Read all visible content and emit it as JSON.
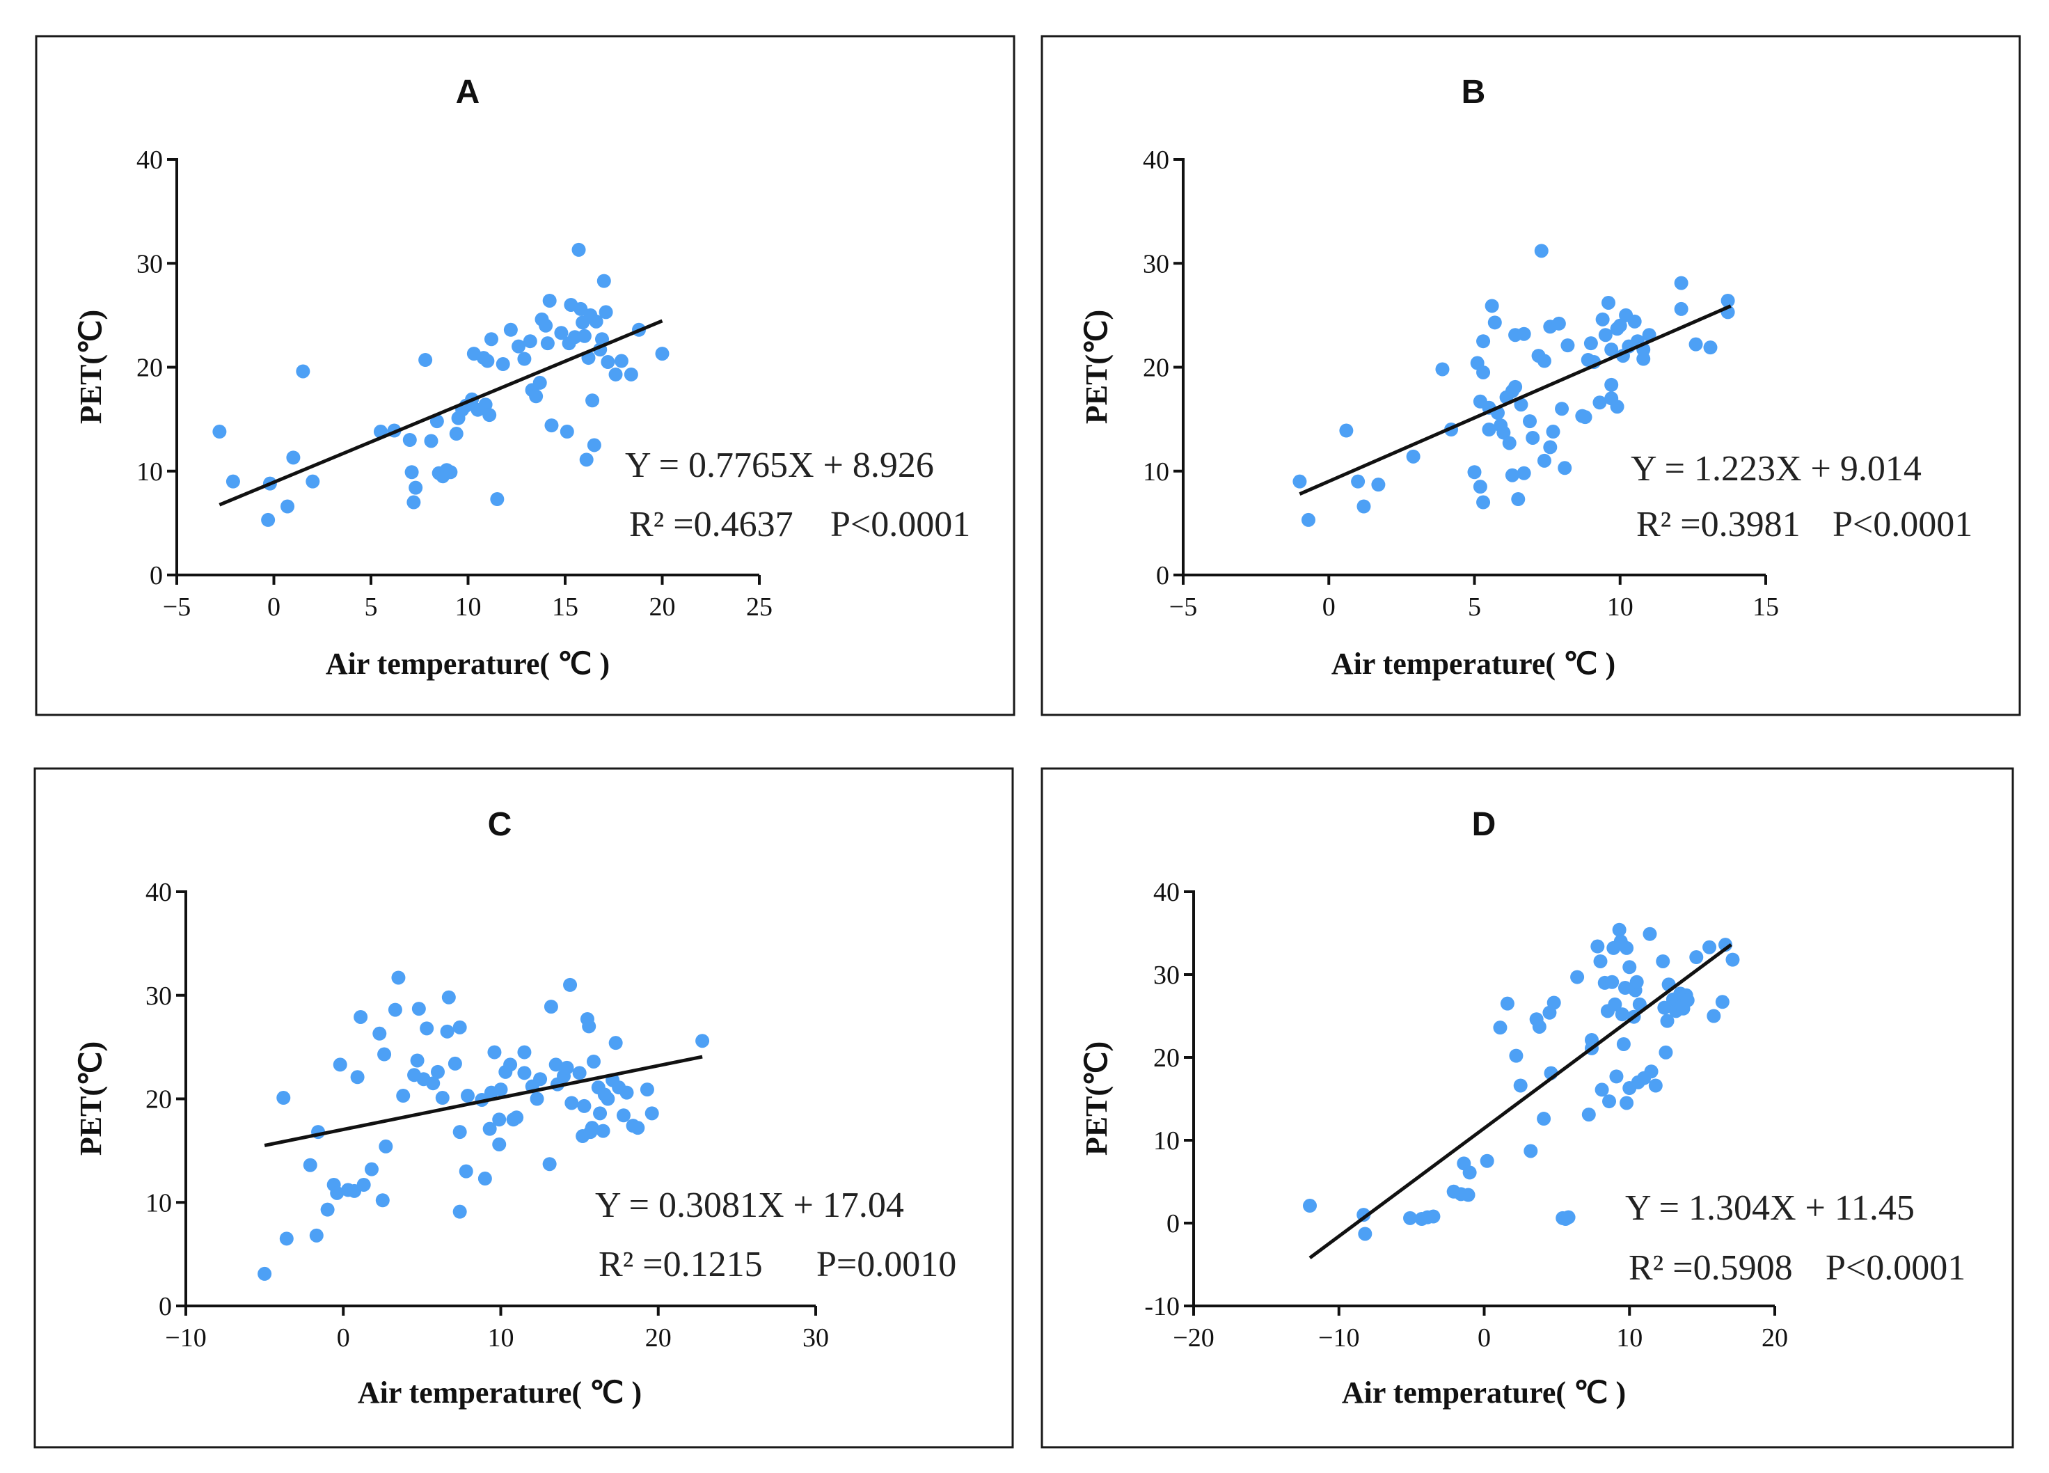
{
  "chart_data": [
    {
      "type": "scatter",
      "title": "A",
      "xlabel": "Air temperature(  ℃  )",
      "ylabel": "PET(℃)",
      "xlim": [
        -5,
        25
      ],
      "ylim": [
        0,
        40
      ],
      "xticks": [
        "−5",
        "0",
        "5",
        "10",
        "15",
        "20",
        "25"
      ],
      "yticks": [
        "0",
        "10",
        "20",
        "30",
        "40"
      ],
      "regression": {
        "slope": 0.7765,
        "intercept": 8.926,
        "x_range": [
          -2.8,
          20
        ]
      },
      "equation": "Y = 0.7765X + 8.926",
      "r2_label": "R² =0.4637",
      "p_label": "P<0.0001",
      "points": [
        [
          -2.8,
          13.8
        ],
        [
          -2.1,
          9.0
        ],
        [
          -0.3,
          5.3
        ],
        [
          -0.2,
          8.8
        ],
        [
          0.7,
          6.6
        ],
        [
          1.0,
          11.3
        ],
        [
          1.5,
          19.6
        ],
        [
          2.0,
          9.0
        ],
        [
          5.5,
          13.8
        ],
        [
          6.2,
          13.9
        ],
        [
          7.0,
          13.0
        ],
        [
          7.1,
          9.9
        ],
        [
          7.2,
          7.0
        ],
        [
          7.3,
          8.4
        ],
        [
          7.8,
          20.7
        ],
        [
          8.1,
          12.9
        ],
        [
          8.4,
          14.8
        ],
        [
          8.5,
          9.8
        ],
        [
          8.7,
          9.5
        ],
        [
          8.9,
          10.1
        ],
        [
          9.1,
          9.9
        ],
        [
          9.4,
          13.6
        ],
        [
          9.5,
          15.1
        ],
        [
          9.7,
          15.9
        ],
        [
          9.9,
          16.3
        ],
        [
          10.2,
          16.9
        ],
        [
          10.3,
          21.3
        ],
        [
          10.5,
          15.9
        ],
        [
          10.8,
          20.9
        ],
        [
          10.9,
          16.4
        ],
        [
          11.0,
          20.6
        ],
        [
          11.1,
          15.4
        ],
        [
          11.2,
          22.7
        ],
        [
          11.5,
          7.3
        ],
        [
          11.8,
          20.3
        ],
        [
          12.2,
          23.6
        ],
        [
          12.6,
          22.0
        ],
        [
          12.9,
          20.8
        ],
        [
          13.2,
          22.5
        ],
        [
          13.3,
          17.8
        ],
        [
          13.5,
          17.2
        ],
        [
          13.7,
          18.5
        ],
        [
          13.8,
          24.6
        ],
        [
          14.0,
          24.0
        ],
        [
          14.1,
          22.3
        ],
        [
          14.2,
          26.4
        ],
        [
          14.3,
          14.4
        ],
        [
          14.8,
          23.3
        ],
        [
          15.1,
          13.8
        ],
        [
          15.2,
          22.3
        ],
        [
          15.3,
          26.0
        ],
        [
          15.5,
          22.9
        ],
        [
          15.7,
          31.3
        ],
        [
          15.8,
          25.6
        ],
        [
          15.9,
          24.3
        ],
        [
          16.0,
          23.0
        ],
        [
          16.1,
          11.1
        ],
        [
          16.2,
          20.9
        ],
        [
          16.3,
          25.0
        ],
        [
          16.4,
          16.8
        ],
        [
          16.5,
          12.5
        ],
        [
          16.6,
          24.4
        ],
        [
          16.8,
          21.7
        ],
        [
          16.9,
          22.7
        ],
        [
          17.0,
          28.3
        ],
        [
          17.1,
          25.3
        ],
        [
          17.2,
          20.5
        ],
        [
          17.6,
          19.3
        ],
        [
          17.9,
          20.6
        ],
        [
          18.4,
          19.3
        ],
        [
          18.8,
          23.6
        ],
        [
          20.0,
          21.3
        ]
      ]
    },
    {
      "type": "scatter",
      "title": "B",
      "xlabel": "Air temperature(  ℃  )",
      "ylabel": "PET(℃)",
      "xlim": [
        -5,
        15
      ],
      "ylim": [
        0,
        40
      ],
      "xticks": [
        "−5",
        "0",
        "5",
        "10",
        "15"
      ],
      "yticks": [
        "0",
        "10",
        "20",
        "30",
        "40"
      ],
      "regression": {
        "slope": 1.223,
        "intercept": 9.014,
        "x_range": [
          -1,
          13.8
        ]
      },
      "equation": "Y = 1.223X + 9.014",
      "r2_label": "R² =0.3981",
      "p_label": "P<0.0001",
      "points": [
        [
          -1.0,
          9.0
        ],
        [
          -0.7,
          5.3
        ],
        [
          0.6,
          13.9
        ],
        [
          1.0,
          9.0
        ],
        [
          1.2,
          6.6
        ],
        [
          1.7,
          8.7
        ],
        [
          2.9,
          11.4
        ],
        [
          3.9,
          19.8
        ],
        [
          4.2,
          14.0
        ],
        [
          5.0,
          9.9
        ],
        [
          5.1,
          20.4
        ],
        [
          5.2,
          8.5
        ],
        [
          5.2,
          16.7
        ],
        [
          5.3,
          19.5
        ],
        [
          5.3,
          7.0
        ],
        [
          5.3,
          22.5
        ],
        [
          5.5,
          14.0
        ],
        [
          5.5,
          16.1
        ],
        [
          5.6,
          25.9
        ],
        [
          5.7,
          24.3
        ],
        [
          5.8,
          15.6
        ],
        [
          5.9,
          14.4
        ],
        [
          6.0,
          13.7
        ],
        [
          6.1,
          17.1
        ],
        [
          6.2,
          12.7
        ],
        [
          6.3,
          17.7
        ],
        [
          6.3,
          9.6
        ],
        [
          6.4,
          18.1
        ],
        [
          6.4,
          23.1
        ],
        [
          6.5,
          7.3
        ],
        [
          6.6,
          16.4
        ],
        [
          6.7,
          23.2
        ],
        [
          6.7,
          9.8
        ],
        [
          6.9,
          14.8
        ],
        [
          7.0,
          13.2
        ],
        [
          7.2,
          21.1
        ],
        [
          7.3,
          31.2
        ],
        [
          7.4,
          20.6
        ],
        [
          7.4,
          11.0
        ],
        [
          7.6,
          23.9
        ],
        [
          7.6,
          12.3
        ],
        [
          7.7,
          13.8
        ],
        [
          7.9,
          24.2
        ],
        [
          8.0,
          16.0
        ],
        [
          8.1,
          10.3
        ],
        [
          8.2,
          22.1
        ],
        [
          8.7,
          15.3
        ],
        [
          8.8,
          15.2
        ],
        [
          8.9,
          20.7
        ],
        [
          9.0,
          22.3
        ],
        [
          9.1,
          20.5
        ],
        [
          9.3,
          16.6
        ],
        [
          9.4,
          24.6
        ],
        [
          9.5,
          23.1
        ],
        [
          9.6,
          26.2
        ],
        [
          9.7,
          17.0
        ],
        [
          9.7,
          21.7
        ],
        [
          9.7,
          18.3
        ],
        [
          9.9,
          16.2
        ],
        [
          9.9,
          23.7
        ],
        [
          10.0,
          24.0
        ],
        [
          10.1,
          21.1
        ],
        [
          10.2,
          25.0
        ],
        [
          10.3,
          22.0
        ],
        [
          10.5,
          24.4
        ],
        [
          10.6,
          22.5
        ],
        [
          10.8,
          21.7
        ],
        [
          10.8,
          20.8
        ],
        [
          11.0,
          23.1
        ],
        [
          12.1,
          28.1
        ],
        [
          12.1,
          25.6
        ],
        [
          12.6,
          22.2
        ],
        [
          13.1,
          21.9
        ],
        [
          13.7,
          25.3
        ],
        [
          13.7,
          26.4
        ]
      ]
    },
    {
      "type": "scatter",
      "title": "C",
      "xlabel": "Air temperature(  ℃  )",
      "ylabel": "PET(℃)",
      "xlim": [
        -10,
        30
      ],
      "ylim": [
        0,
        40
      ],
      "xticks": [
        "−10",
        "0",
        "10",
        "20",
        "30"
      ],
      "yticks": [
        "0",
        "10",
        "20",
        "30",
        "40"
      ],
      "regression": {
        "slope": 0.3081,
        "intercept": 17.04,
        "x_range": [
          -5,
          22.8
        ]
      },
      "equation": "Y = 0.3081X + 17.04",
      "r2_label": "R² =0.1215",
      "p_label": "P=0.0010",
      "points": [
        [
          -5.0,
          3.1
        ],
        [
          -3.8,
          20.1
        ],
        [
          -3.6,
          6.5
        ],
        [
          -2.1,
          13.6
        ],
        [
          -1.7,
          6.8
        ],
        [
          -1.6,
          16.8
        ],
        [
          -1.0,
          9.3
        ],
        [
          -0.6,
          11.7
        ],
        [
          -0.4,
          10.9
        ],
        [
          -0.2,
          23.3
        ],
        [
          0.3,
          11.2
        ],
        [
          0.7,
          11.1
        ],
        [
          0.9,
          22.1
        ],
        [
          1.1,
          27.9
        ],
        [
          1.3,
          11.7
        ],
        [
          1.8,
          13.2
        ],
        [
          2.3,
          26.3
        ],
        [
          2.5,
          10.2
        ],
        [
          2.6,
          24.3
        ],
        [
          2.7,
          15.4
        ],
        [
          3.3,
          28.6
        ],
        [
          3.5,
          31.7
        ],
        [
          3.8,
          20.3
        ],
        [
          4.5,
          22.3
        ],
        [
          4.7,
          23.7
        ],
        [
          4.8,
          28.7
        ],
        [
          5.1,
          21.9
        ],
        [
          5.3,
          26.8
        ],
        [
          5.7,
          21.5
        ],
        [
          6.0,
          22.6
        ],
        [
          6.3,
          20.1
        ],
        [
          6.6,
          26.5
        ],
        [
          6.7,
          29.8
        ],
        [
          7.1,
          23.4
        ],
        [
          7.4,
          26.9
        ],
        [
          7.4,
          16.8
        ],
        [
          7.4,
          9.1
        ],
        [
          7.8,
          13.0
        ],
        [
          7.9,
          20.3
        ],
        [
          8.8,
          19.9
        ],
        [
          9.0,
          12.3
        ],
        [
          9.3,
          17.1
        ],
        [
          9.4,
          20.6
        ],
        [
          9.6,
          24.5
        ],
        [
          9.9,
          18.0
        ],
        [
          9.9,
          15.6
        ],
        [
          10.0,
          20.9
        ],
        [
          10.3,
          22.6
        ],
        [
          10.6,
          23.3
        ],
        [
          10.8,
          18.0
        ],
        [
          11.0,
          18.2
        ],
        [
          11.5,
          22.5
        ],
        [
          11.5,
          24.5
        ],
        [
          12.0,
          21.2
        ],
        [
          12.3,
          20.0
        ],
        [
          12.5,
          21.9
        ],
        [
          13.1,
          13.7
        ],
        [
          13.2,
          28.9
        ],
        [
          13.5,
          23.3
        ],
        [
          13.6,
          21.4
        ],
        [
          14.0,
          22.2
        ],
        [
          14.2,
          23.0
        ],
        [
          14.4,
          31.0
        ],
        [
          14.5,
          19.6
        ],
        [
          15.0,
          22.5
        ],
        [
          15.2,
          16.4
        ],
        [
          15.3,
          19.3
        ],
        [
          15.5,
          27.7
        ],
        [
          15.6,
          27.0
        ],
        [
          15.7,
          16.8
        ],
        [
          15.8,
          17.2
        ],
        [
          15.9,
          23.6
        ],
        [
          16.2,
          21.1
        ],
        [
          16.3,
          18.6
        ],
        [
          16.5,
          16.9
        ],
        [
          16.6,
          20.4
        ],
        [
          16.8,
          20.0
        ],
        [
          17.1,
          21.8
        ],
        [
          17.3,
          25.4
        ],
        [
          17.5,
          21.1
        ],
        [
          17.8,
          18.4
        ],
        [
          18.0,
          20.6
        ],
        [
          18.4,
          17.4
        ],
        [
          18.7,
          17.2
        ],
        [
          19.3,
          20.9
        ],
        [
          19.6,
          18.6
        ],
        [
          22.8,
          25.6
        ]
      ]
    },
    {
      "type": "scatter",
      "title": "D",
      "xlabel": "Air temperature(  ℃  )",
      "ylabel": "PET(℃)",
      "xlim": [
        -20,
        20
      ],
      "ylim": [
        -10,
        40
      ],
      "xticks": [
        "−20",
        "−10",
        "0",
        "10",
        "20"
      ],
      "yticks": [
        "-10",
        "0",
        "10",
        "20",
        "30",
        "40"
      ],
      "regression": {
        "slope": 1.304,
        "intercept": 11.45,
        "x_range": [
          -12,
          17
        ]
      },
      "equation": "Y = 1.304X + 11.45",
      "r2_label": "R² =0.5908",
      "p_label": "P<0.0001",
      "points": [
        [
          -12.0,
          2.1
        ],
        [
          -8.3,
          1.0
        ],
        [
          -8.2,
          -1.3
        ],
        [
          -5.1,
          0.6
        ],
        [
          -4.3,
          0.5
        ],
        [
          -3.9,
          0.7
        ],
        [
          -3.5,
          0.8
        ],
        [
          -2.1,
          3.8
        ],
        [
          -1.6,
          3.5
        ],
        [
          -1.4,
          7.2
        ],
        [
          -1.1,
          3.4
        ],
        [
          -1.0,
          6.1
        ],
        [
          0.2,
          7.5
        ],
        [
          1.1,
          23.6
        ],
        [
          1.6,
          26.5
        ],
        [
          2.2,
          20.2
        ],
        [
          2.5,
          16.6
        ],
        [
          3.2,
          8.7
        ],
        [
          3.6,
          24.6
        ],
        [
          3.8,
          23.7
        ],
        [
          4.1,
          12.6
        ],
        [
          4.5,
          25.4
        ],
        [
          4.6,
          18.1
        ],
        [
          4.8,
          26.6
        ],
        [
          5.4,
          0.6
        ],
        [
          5.6,
          0.5
        ],
        [
          5.8,
          0.7
        ],
        [
          6.4,
          29.7
        ],
        [
          7.2,
          13.1
        ],
        [
          7.4,
          22.1
        ],
        [
          7.4,
          21.1
        ],
        [
          7.8,
          33.4
        ],
        [
          8.0,
          31.6
        ],
        [
          8.1,
          16.1
        ],
        [
          8.3,
          29.0
        ],
        [
          8.5,
          25.6
        ],
        [
          8.6,
          14.7
        ],
        [
          8.8,
          29.1
        ],
        [
          8.9,
          33.2
        ],
        [
          9.0,
          26.4
        ],
        [
          9.1,
          17.7
        ],
        [
          9.3,
          35.4
        ],
        [
          9.4,
          34.0
        ],
        [
          9.5,
          25.2
        ],
        [
          9.6,
          21.6
        ],
        [
          9.7,
          28.4
        ],
        [
          9.8,
          14.5
        ],
        [
          9.8,
          33.2
        ],
        [
          10.0,
          16.3
        ],
        [
          10.0,
          30.9
        ],
        [
          10.3,
          24.9
        ],
        [
          10.4,
          28.1
        ],
        [
          10.5,
          29.1
        ],
        [
          10.6,
          17.0
        ],
        [
          10.7,
          26.4
        ],
        [
          11.0,
          17.5
        ],
        [
          11.4,
          34.9
        ],
        [
          11.5,
          18.3
        ],
        [
          11.8,
          16.6
        ],
        [
          12.3,
          31.6
        ],
        [
          12.4,
          26.0
        ],
        [
          12.5,
          20.6
        ],
        [
          12.6,
          24.4
        ],
        [
          12.7,
          28.8
        ],
        [
          13.0,
          27.0
        ],
        [
          13.2,
          25.6
        ],
        [
          13.3,
          26.9
        ],
        [
          13.5,
          27.7
        ],
        [
          13.6,
          26.2
        ],
        [
          13.7,
          25.9
        ],
        [
          13.9,
          27.5
        ],
        [
          14.0,
          26.9
        ],
        [
          14.6,
          32.1
        ],
        [
          15.5,
          33.3
        ],
        [
          15.8,
          25.0
        ],
        [
          16.4,
          26.7
        ],
        [
          16.6,
          33.6
        ],
        [
          17.1,
          31.8
        ]
      ]
    }
  ]
}
